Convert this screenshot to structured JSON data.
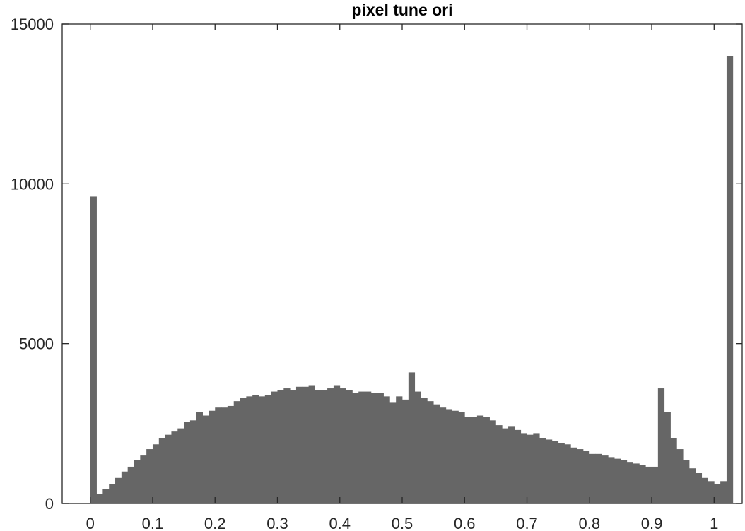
{
  "chart_data": {
    "type": "bar",
    "title": "pixel tune ori",
    "xlabel": "",
    "ylabel": "",
    "xlim": [
      -0.045,
      1.045
    ],
    "ylim": [
      0,
      15000
    ],
    "grid": false,
    "bar_color": "#666666",
    "axis_color": "#262626",
    "x_ticks": [
      0,
      0.1,
      0.2,
      0.3,
      0.4,
      0.5,
      0.6,
      0.7,
      0.8,
      0.9,
      1
    ],
    "x_tick_labels": [
      "0",
      "0.1",
      "0.2",
      "0.3",
      "0.4",
      "0.5",
      "0.6",
      "0.7",
      "0.8",
      "0.9",
      "1"
    ],
    "y_ticks": [
      0,
      5000,
      10000,
      15000
    ],
    "y_tick_labels": [
      "0",
      "5000",
      "10000",
      "15000"
    ],
    "bin_edges_start": 0,
    "bin_width": 0.01,
    "counts": [
      9600,
      300,
      450,
      600,
      800,
      1000,
      1150,
      1350,
      1500,
      1700,
      1850,
      2050,
      2150,
      2250,
      2350,
      2550,
      2600,
      2850,
      2750,
      2900,
      3000,
      3000,
      3050,
      3200,
      3300,
      3350,
      3400,
      3350,
      3400,
      3500,
      3550,
      3600,
      3550,
      3650,
      3650,
      3700,
      3550,
      3550,
      3600,
      3700,
      3600,
      3550,
      3450,
      3500,
      3500,
      3450,
      3450,
      3350,
      3150,
      3350,
      3250,
      4100,
      3500,
      3300,
      3200,
      3100,
      3000,
      2950,
      2900,
      2850,
      2700,
      2700,
      2750,
      2700,
      2600,
      2450,
      2350,
      2400,
      2300,
      2200,
      2150,
      2200,
      2050,
      2000,
      1950,
      1900,
      1850,
      1750,
      1700,
      1650,
      1550,
      1550,
      1500,
      1450,
      1400,
      1350,
      1300,
      1250,
      1200,
      1150,
      1150,
      3600,
      2850,
      2050,
      1700,
      1350,
      1100,
      950,
      800,
      700,
      600,
      700,
      14000
    ]
  }
}
